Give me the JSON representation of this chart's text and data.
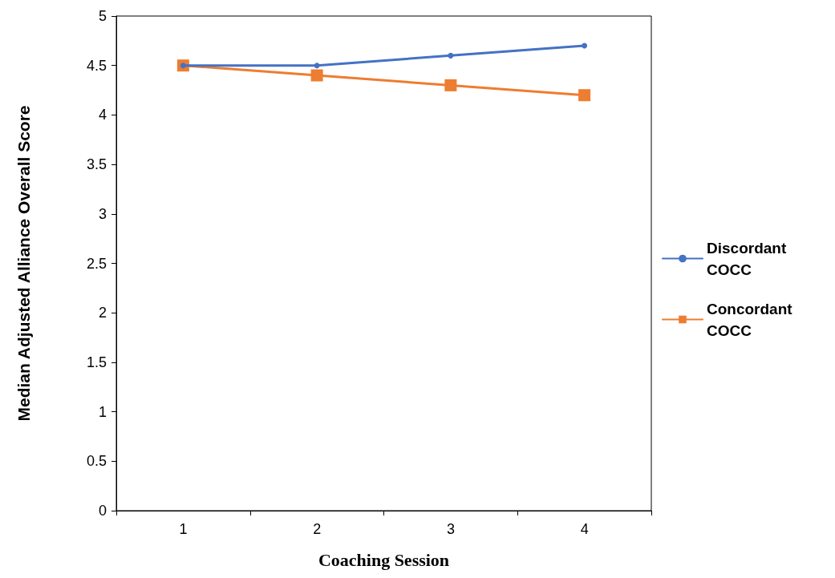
{
  "chart_data": {
    "type": "line",
    "xlabel": "Coaching Session",
    "ylabel": "Median Adjusted Alliance Overall Score",
    "categories": [
      "1",
      "2",
      "3",
      "4"
    ],
    "series": [
      {
        "name": "Discordant COCC",
        "color": "#4472c4",
        "marker": "circle",
        "values": [
          4.5,
          4.5,
          4.6,
          4.7
        ]
      },
      {
        "name": "Concordant COCC",
        "color": "#ed7d31",
        "marker": "square",
        "values": [
          4.5,
          4.4,
          4.3,
          4.2
        ]
      }
    ],
    "ylim": [
      0,
      5
    ],
    "yticks": [
      0,
      0.5,
      1,
      1.5,
      2,
      2.5,
      3,
      3.5,
      4,
      4.5,
      5
    ],
    "grid": false,
    "legend": "right",
    "line_style": "solid"
  }
}
